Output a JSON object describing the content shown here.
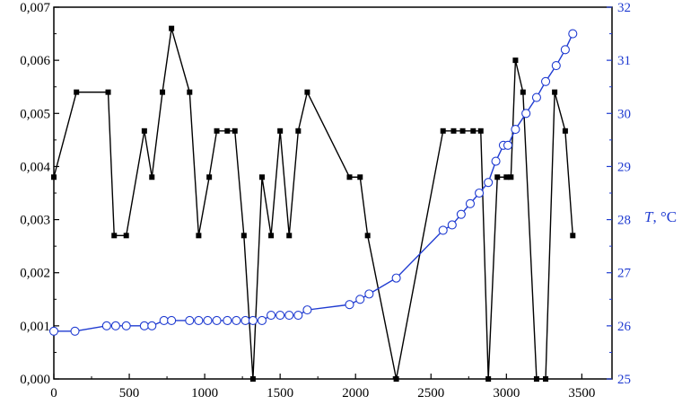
{
  "chart_data": {
    "type": "line",
    "xlim": [
      0,
      3700
    ],
    "x_ticks": [
      0,
      500,
      1000,
      1500,
      2000,
      2500,
      3000,
      3500
    ],
    "y_left": {
      "lim": [
        0,
        0.007
      ],
      "ticks": [
        0.0,
        0.001,
        0.002,
        0.003,
        0.004,
        0.005,
        0.006,
        0.007
      ],
      "tick_labels": [
        "0,000",
        "0,001",
        "0,002",
        "0,003",
        "0,004",
        "0,005",
        "0,006",
        "0,007"
      ]
    },
    "y_right": {
      "lim": [
        25,
        32
      ],
      "ticks": [
        25,
        26,
        27,
        28,
        29,
        30,
        31,
        32
      ],
      "tick_labels": [
        "25",
        "26",
        "27",
        "28",
        "29",
        "30",
        "31",
        "32"
      ],
      "label_italic": "T",
      "label_rest": ", °C"
    },
    "series": [
      {
        "axis": "left",
        "marker": "square",
        "color": "#000000",
        "points": [
          [
            0,
            0.0038
          ],
          [
            150,
            0.0054
          ],
          [
            360,
            0.0054
          ],
          [
            400,
            0.0027
          ],
          [
            480,
            0.0027
          ],
          [
            600,
            0.00467
          ],
          [
            650,
            0.0038
          ],
          [
            720,
            0.0054
          ],
          [
            780,
            0.0066
          ],
          [
            900,
            0.0054
          ],
          [
            960,
            0.0027
          ],
          [
            1030,
            0.0038
          ],
          [
            1080,
            0.00467
          ],
          [
            1150,
            0.00467
          ],
          [
            1200,
            0.00467
          ],
          [
            1260,
            0.0027
          ],
          [
            1320,
            0.0
          ],
          [
            1380,
            0.0038
          ],
          [
            1440,
            0.0027
          ],
          [
            1500,
            0.00467
          ],
          [
            1560,
            0.0027
          ],
          [
            1620,
            0.00467
          ],
          [
            1680,
            0.0054
          ],
          [
            1960,
            0.0038
          ],
          [
            2030,
            0.0038
          ],
          [
            2080,
            0.0027
          ],
          [
            2270,
            0.0
          ],
          [
            2580,
            0.00467
          ],
          [
            2650,
            0.00467
          ],
          [
            2710,
            0.00467
          ],
          [
            2780,
            0.00467
          ],
          [
            2830,
            0.00467
          ],
          [
            2880,
            0.0
          ],
          [
            2940,
            0.0038
          ],
          [
            3000,
            0.0038
          ],
          [
            3030,
            0.0038
          ],
          [
            3060,
            0.006
          ],
          [
            3110,
            0.0054
          ],
          [
            3200,
            0.0
          ],
          [
            3260,
            0.0
          ],
          [
            3320,
            0.0054
          ],
          [
            3390,
            0.00467
          ],
          [
            3440,
            0.0027
          ]
        ]
      },
      {
        "axis": "right",
        "marker": "circle-open",
        "color": "#1f3bd1",
        "points": [
          [
            0,
            25.9
          ],
          [
            140,
            25.9
          ],
          [
            350,
            26.0
          ],
          [
            410,
            26.0
          ],
          [
            480,
            26.0
          ],
          [
            600,
            26.0
          ],
          [
            650,
            26.0
          ],
          [
            730,
            26.1
          ],
          [
            780,
            26.1
          ],
          [
            900,
            26.1
          ],
          [
            960,
            26.1
          ],
          [
            1020,
            26.1
          ],
          [
            1080,
            26.1
          ],
          [
            1150,
            26.1
          ],
          [
            1210,
            26.1
          ],
          [
            1270,
            26.1
          ],
          [
            1320,
            26.1
          ],
          [
            1380,
            26.1
          ],
          [
            1440,
            26.2
          ],
          [
            1500,
            26.2
          ],
          [
            1560,
            26.2
          ],
          [
            1620,
            26.2
          ],
          [
            1680,
            26.3
          ],
          [
            1960,
            26.4
          ],
          [
            2030,
            26.5
          ],
          [
            2090,
            26.6
          ],
          [
            2270,
            26.9
          ],
          [
            2580,
            27.8
          ],
          [
            2640,
            27.9
          ],
          [
            2700,
            28.1
          ],
          [
            2760,
            28.3
          ],
          [
            2820,
            28.5
          ],
          [
            2880,
            28.7
          ],
          [
            2930,
            29.1
          ],
          [
            2980,
            29.4
          ],
          [
            3010,
            29.4
          ],
          [
            3060,
            29.7
          ],
          [
            3130,
            30.0
          ],
          [
            3200,
            30.3
          ],
          [
            3260,
            30.6
          ],
          [
            3330,
            30.9
          ],
          [
            3390,
            31.2
          ],
          [
            3440,
            31.5
          ]
        ]
      }
    ]
  }
}
